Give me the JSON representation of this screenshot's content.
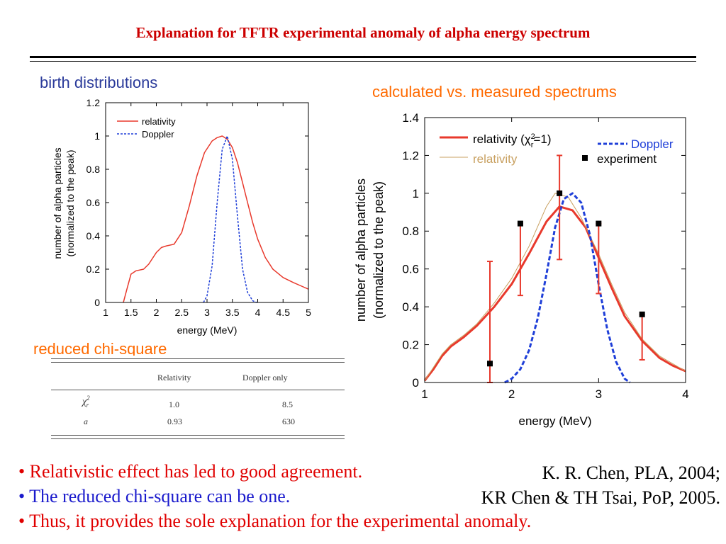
{
  "title": "Explanation for TFTR experimental anomaly of alpha energy spectrum",
  "sections": {
    "birth": "birth distributions",
    "calc": "calculated vs. measured spectrums",
    "chi": "reduced chi-square"
  },
  "colors": {
    "title": "#cc0000",
    "relativity": "#e8392c",
    "doppler": "#1f3fd8",
    "relativity_thin": "#c8a060",
    "bullet_red": "#e00000",
    "bullet_blue": "#1a1acc"
  },
  "chart_data": [
    {
      "type": "line",
      "xlabel": "energy (MeV)",
      "ylabel": [
        "number of alpha particles",
        "(normalized to the peak)"
      ],
      "xlim": [
        1,
        5
      ],
      "ylim": [
        0,
        1.2
      ],
      "xticks": [
        "1",
        "1.5",
        "2",
        "2.5",
        "3",
        "3.5",
        "4",
        "4.5",
        "5"
      ],
      "xtick_values": [
        1,
        1.5,
        2,
        2.5,
        3,
        3.5,
        4,
        4.5,
        5
      ],
      "yticks": [
        "0",
        "0.2",
        "0.4",
        "0.6",
        "0.8",
        "1",
        "1.2"
      ],
      "ytick_values": [
        0,
        0.2,
        0.4,
        0.6,
        0.8,
        1,
        1.2
      ],
      "legend_position": "top-left",
      "series": [
        {
          "name": "relativity",
          "style": "solid",
          "x": [
            1.35,
            1.42,
            1.5,
            1.6,
            1.75,
            1.85,
            2.0,
            2.1,
            2.2,
            2.35,
            2.5,
            2.65,
            2.8,
            2.95,
            3.1,
            3.2,
            3.3,
            3.35,
            3.4,
            3.5,
            3.6,
            3.7,
            3.8,
            3.9,
            4.0,
            4.15,
            4.3,
            4.5,
            4.7,
            4.85,
            5.0
          ],
          "y": [
            0.0,
            0.08,
            0.17,
            0.19,
            0.2,
            0.23,
            0.3,
            0.33,
            0.34,
            0.35,
            0.42,
            0.58,
            0.76,
            0.9,
            0.97,
            0.99,
            1.0,
            0.99,
            0.98,
            0.93,
            0.84,
            0.72,
            0.6,
            0.48,
            0.38,
            0.27,
            0.2,
            0.15,
            0.12,
            0.1,
            0.08
          ]
        },
        {
          "name": "Doppler",
          "style": "dashed",
          "x": [
            2.93,
            3.0,
            3.1,
            3.2,
            3.3,
            3.4,
            3.5,
            3.6,
            3.7,
            3.8,
            3.9,
            3.98
          ],
          "y": [
            0.0,
            0.04,
            0.22,
            0.6,
            0.92,
            1.0,
            0.86,
            0.52,
            0.2,
            0.06,
            0.01,
            0.0
          ]
        }
      ]
    },
    {
      "type": "line",
      "xlabel": "energy (MeV)",
      "ylabel": [
        "number of alpha particles",
        "(normalized to the peak)"
      ],
      "xlim": [
        1,
        4
      ],
      "ylim": [
        0,
        1.4
      ],
      "xticks": [
        "1",
        "2",
        "3",
        "4"
      ],
      "xtick_values": [
        1,
        2,
        3,
        4
      ],
      "yticks": [
        "0",
        "0.2",
        "0.4",
        "0.6",
        "0.8",
        "1",
        "1.2",
        "1.4"
      ],
      "ytick_values": [
        0,
        0.2,
        0.4,
        0.6,
        0.8,
        1,
        1.2,
        1.4
      ],
      "legend_position": "top",
      "legend": {
        "relativity_chi_main": "relativity (χ",
        "relativity_chi_sup": "2",
        "relativity_chi_sub": "r",
        "relativity_chi_tail": "=1)",
        "relativity": "relativity",
        "doppler": "Doppler",
        "experiment": "experiment"
      },
      "series": [
        {
          "name": "relativity (χr2=1)",
          "style": "solid-thick",
          "x": [
            1.0,
            1.1,
            1.2,
            1.3,
            1.45,
            1.6,
            1.8,
            2.0,
            2.2,
            2.4,
            2.55,
            2.7,
            2.85,
            3.0,
            3.15,
            3.3,
            3.5,
            3.7,
            3.85,
            4.0
          ],
          "y": [
            0.01,
            0.07,
            0.14,
            0.19,
            0.24,
            0.3,
            0.4,
            0.52,
            0.68,
            0.85,
            0.93,
            0.91,
            0.82,
            0.66,
            0.5,
            0.35,
            0.22,
            0.13,
            0.09,
            0.06
          ]
        },
        {
          "name": "relativity",
          "style": "solid-thin",
          "x": [
            1.0,
            1.1,
            1.2,
            1.3,
            1.45,
            1.6,
            1.8,
            2.0,
            2.2,
            2.4,
            2.5,
            2.65,
            2.8,
            3.0,
            3.15,
            3.3,
            3.5,
            3.7,
            3.85,
            4.0
          ],
          "y": [
            0.01,
            0.08,
            0.15,
            0.2,
            0.25,
            0.31,
            0.42,
            0.55,
            0.72,
            0.93,
            1.0,
            0.98,
            0.87,
            0.68,
            0.52,
            0.37,
            0.23,
            0.14,
            0.1,
            0.06
          ]
        },
        {
          "name": "Doppler",
          "style": "dashed",
          "x": [
            1.92,
            2.0,
            2.1,
            2.2,
            2.3,
            2.4,
            2.5,
            2.6,
            2.7,
            2.8,
            2.9,
            3.0,
            3.1,
            3.2,
            3.3,
            3.36
          ],
          "y": [
            0.0,
            0.02,
            0.07,
            0.17,
            0.34,
            0.57,
            0.82,
            0.97,
            1.0,
            0.95,
            0.78,
            0.52,
            0.28,
            0.11,
            0.02,
            0.0
          ]
        },
        {
          "name": "experiment",
          "style": "points",
          "x": [
            1.75,
            2.1,
            2.55,
            3.0,
            3.5
          ],
          "y": [
            0.1,
            0.84,
            1.0,
            0.84,
            0.36
          ],
          "err_low": [
            0.0,
            0.46,
            0.65,
            0.47,
            0.12
          ],
          "err_high": [
            0.64,
            0.84,
            1.2,
            0.84,
            0.36
          ]
        }
      ]
    }
  ],
  "table": {
    "headers": [
      "Relativity",
      "Doppler only"
    ],
    "rows": [
      {
        "label_main": "χ",
        "label_sup": "2",
        "label_sub": "r",
        "values": [
          "1.0",
          "8.5"
        ]
      },
      {
        "label_main": "a",
        "values": [
          "0.93",
          "630"
        ]
      }
    ]
  },
  "bullets": [
    {
      "text": "• Relativistic effect has led to good agreement.",
      "color": "#e00000"
    },
    {
      "text": "• The reduced chi-square can be one.",
      "color": "#1a1acc"
    },
    {
      "text": "• Thus, it provides the sole explanation for the experimental anomaly.",
      "color": "#e00000"
    }
  ],
  "references": [
    "K. R. Chen, PLA, 2004;",
    "KR Chen & TH Tsai, PoP, 2005."
  ]
}
